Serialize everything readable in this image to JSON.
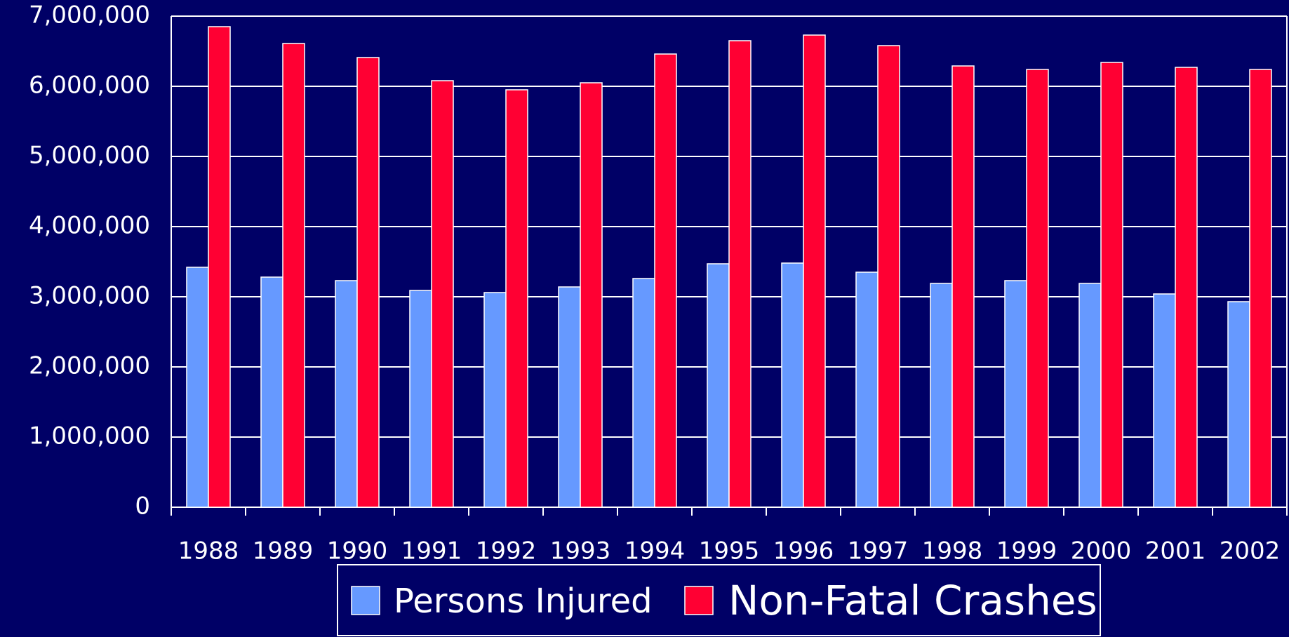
{
  "chart_data": {
    "type": "bar",
    "categories": [
      "1988",
      "1989",
      "1990",
      "1991",
      "1992",
      "1993",
      "1994",
      "1995",
      "1996",
      "1997",
      "1998",
      "1999",
      "2000",
      "2001",
      "2002"
    ],
    "series": [
      {
        "name": "Persons Injured",
        "color": "#6699ff",
        "values": [
          3420000,
          3280000,
          3230000,
          3090000,
          3060000,
          3140000,
          3260000,
          3470000,
          3480000,
          3350000,
          3190000,
          3230000,
          3190000,
          3040000,
          2930000
        ]
      },
      {
        "name": "Non-Fatal Crashes",
        "color": "#ff0033",
        "values": [
          6850000,
          6610000,
          6410000,
          6080000,
          5950000,
          6050000,
          6460000,
          6650000,
          6730000,
          6580000,
          6290000,
          6240000,
          6340000,
          6270000,
          6240000
        ]
      }
    ],
    "ylim": [
      0,
      7000000
    ],
    "yticks": [
      0,
      {
        "value": 1000000,
        "label": "1,000,000"
      },
      {
        "value": 2000000,
        "label": "2,000,000"
      },
      {
        "value": 3000000,
        "label": "3,000,000"
      },
      {
        "value": 4000000,
        "label": "4,000,000"
      },
      {
        "value": 5000000,
        "label": "5,000,000"
      },
      {
        "value": 6000000,
        "label": "6,000,000"
      },
      {
        "value": 7000000,
        "label": "7,000,000"
      }
    ],
    "grid": true,
    "legend": "bottom"
  }
}
